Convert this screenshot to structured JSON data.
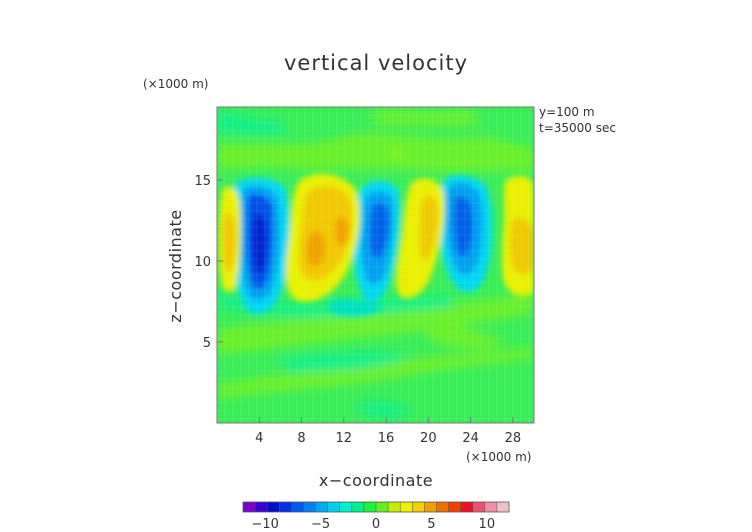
{
  "chart_data": {
    "type": "heatmap",
    "title": "vertical velocity",
    "xlabel": "x−coordinate",
    "ylabel": "z−coordinate",
    "x_unit": "(×1000 m)",
    "z_unit": "(×1000 m)",
    "xlim": [
      0,
      30
    ],
    "zlim": [
      0,
      19.5
    ],
    "x_ticks": [
      4,
      8,
      12,
      16,
      20,
      24,
      28
    ],
    "z_ticks": [
      5,
      10,
      15
    ],
    "annotations": [
      "y=100 m",
      "t=35000 sec"
    ],
    "colorbar": {
      "ticks": [
        -10,
        -5,
        0,
        5,
        10
      ],
      "range": [
        -12,
        12
      ],
      "colors": [
        "#7a00c8",
        "#3a00d8",
        "#0010c8",
        "#0030e8",
        "#0058f0",
        "#0080f0",
        "#00a8f0",
        "#00d0f0",
        "#00f0d0",
        "#00f090",
        "#20f040",
        "#60f020",
        "#c0f000",
        "#f0f000",
        "#f0d000",
        "#f0a000",
        "#f07000",
        "#f04000",
        "#f01020",
        "#f05070",
        "#f090a8",
        "#f0c0c8"
      ]
    },
    "cells": [
      {
        "x": 4.0,
        "z": 10.8,
        "value": -9.0
      },
      {
        "x": 2.0,
        "z": 11.5,
        "value": 3.0
      },
      {
        "x": 9.5,
        "z": 11.0,
        "value": 4.5
      },
      {
        "x": 14.5,
        "z": 11.5,
        "value": -6.5
      },
      {
        "x": 19.5,
        "z": 11.0,
        "value": 3.5
      },
      {
        "x": 22.5,
        "z": 11.8,
        "value": -6.5
      },
      {
        "x": 28.0,
        "z": 11.0,
        "value": 3.5
      },
      {
        "x": 17.0,
        "z": 15.0,
        "value": 0.8
      },
      {
        "x": 12.0,
        "z": 16.5,
        "value": 0.7
      },
      {
        "x": 14.0,
        "z": 7.5,
        "value": -1.5
      },
      {
        "x": 20.0,
        "z": 4.0,
        "value": 0.6
      },
      {
        "x": 8.0,
        "z": 3.0,
        "value": -0.7
      },
      {
        "x": 16.0,
        "z": 0.5,
        "value": -0.5
      }
    ]
  }
}
